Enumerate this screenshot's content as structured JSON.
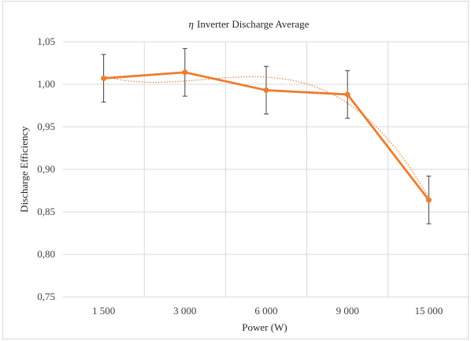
{
  "chart_data": {
    "type": "line",
    "title_symbol": "η",
    "title": "Inverter Discharge Average",
    "xlabel": "Power (W)",
    "ylabel": "Discharge Efficiency",
    "categories": [
      "1 500",
      "3 000",
      "6 000",
      "9 000",
      "15 000"
    ],
    "y_ticks": [
      "0,75",
      "0,80",
      "0,85",
      "0,90",
      "0,95",
      "1,00",
      "1,05"
    ],
    "ylim": [
      0.75,
      1.05
    ],
    "series": [
      {
        "values": [
          1.007,
          1.014,
          0.993,
          0.988,
          0.864
        ],
        "error": [
          0.028,
          0.028,
          0.028,
          0.028,
          0.028
        ],
        "color": "#ed7d31"
      }
    ],
    "trendline": {
      "type": "polynomial",
      "style": "dotted",
      "color": "#ed7d31"
    },
    "grid": "vertical"
  }
}
